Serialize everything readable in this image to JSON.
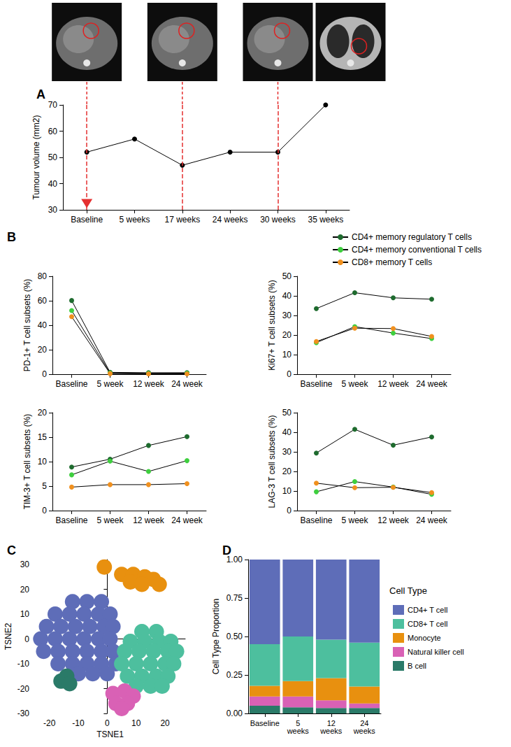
{
  "chart_data": [
    {
      "panel": "A",
      "type": "line",
      "ylabel": "Tumour volume (mm2)",
      "categories": [
        "Baseline",
        "5 weeks",
        "17 weeks",
        "24 weeks",
        "30 weeks",
        "35 weeks"
      ],
      "series": [
        {
          "name": "Tumour volume",
          "color": "#000000",
          "values": [
            52,
            57,
            47,
            52,
            52,
            70
          ]
        }
      ],
      "ylim": [
        30,
        70
      ],
      "yticks": [
        30,
        40,
        50,
        60,
        70
      ],
      "grid": false,
      "marker": "circle",
      "vlines": [
        "Baseline",
        "17 weeks",
        "30 weeks"
      ],
      "arrow_at": "Baseline"
    },
    {
      "panel": "B",
      "type": "line",
      "ylabel": "PD-1+ T cell subsets (%)",
      "categories": [
        "Baseline",
        "5 week",
        "12 week",
        "24 week"
      ],
      "series": [
        {
          "name": "CD4+ memory regulatory T cells",
          "color": "#1e6b2e",
          "values": [
            60.2,
            1.5,
            1.2,
            1.2
          ]
        },
        {
          "name": "CD4+ memory conventional T cells",
          "color": "#3ecf3e",
          "values": [
            52,
            1,
            0.7,
            0.8
          ]
        },
        {
          "name": "CD8+ memory T cells",
          "color": "#f0901e",
          "values": [
            47,
            0.5,
            0.3,
            0.3
          ]
        }
      ],
      "ylim": [
        0,
        80
      ],
      "yticks": [
        0,
        20,
        40,
        60,
        80
      ],
      "grid": false,
      "marker": "circle"
    },
    {
      "type": "line",
      "ylabel": "Ki67+ T cell subsets (%)",
      "categories": [
        "Baseline",
        "5 week",
        "12 week",
        "24 week"
      ],
      "series": [
        {
          "name": "CD4+ memory regulatory T cells",
          "color": "#1e6b2e",
          "values": [
            33.5,
            41.6,
            39,
            38.3
          ]
        },
        {
          "name": "CD4+ memory conventional T cells",
          "color": "#3ecf3e",
          "values": [
            16.1,
            24.3,
            21,
            18.2
          ]
        },
        {
          "name": "CD8+ memory T cells",
          "color": "#f0901e",
          "values": [
            16.7,
            23.5,
            23.3,
            19.3
          ]
        }
      ],
      "ylim": [
        0,
        50
      ],
      "yticks": [
        0,
        10,
        20,
        30,
        40,
        50
      ],
      "grid": false,
      "marker": "circle",
      "legend": "top-right"
    },
    {
      "type": "line",
      "ylabel": "TIM-3+ T cell subsets (%)",
      "categories": [
        "Baseline",
        "5 week",
        "12 week",
        "24 week"
      ],
      "series": [
        {
          "name": "CD4+ memory regulatory T cells",
          "color": "#1e6b2e",
          "values": [
            8.9,
            10.5,
            13.3,
            15.1
          ]
        },
        {
          "name": "CD4+ memory conventional T cells",
          "color": "#3ecf3e",
          "values": [
            7.3,
            10.1,
            8,
            10.2
          ]
        },
        {
          "name": "CD8+ memory T cells",
          "color": "#f0901e",
          "values": [
            4.8,
            5.3,
            5.3,
            5.5
          ]
        }
      ],
      "ylim": [
        0,
        20
      ],
      "yticks": [
        0,
        5,
        10,
        15,
        20
      ],
      "grid": false,
      "marker": "circle"
    },
    {
      "type": "line",
      "ylabel": "LAG-3 T cell subsets (%)",
      "categories": [
        "Baseline",
        "5 week",
        "12 week",
        "24 week"
      ],
      "series": [
        {
          "name": "CD4+ memory regulatory T cells",
          "color": "#1e6b2e",
          "values": [
            29.4,
            41.5,
            33.4,
            37.6
          ]
        },
        {
          "name": "CD4+ memory conventional T cells",
          "color": "#3ecf3e",
          "values": [
            9.6,
            14.8,
            12,
            8.3
          ]
        },
        {
          "name": "CD8+ memory T cells",
          "color": "#f0901e",
          "values": [
            14,
            11.7,
            11.9,
            9.2
          ]
        }
      ],
      "ylim": [
        0,
        50
      ],
      "yticks": [
        0,
        10,
        20,
        30,
        40,
        50
      ],
      "grid": false,
      "marker": "circle"
    },
    {
      "panel": "C",
      "type": "scatter",
      "xlabel": "TSNE1",
      "ylabel": "TSNE2",
      "xlim": [
        -25,
        27
      ],
      "ylim": [
        -30,
        32
      ],
      "xticks": [
        -20,
        -10,
        0,
        10,
        20
      ],
      "yticks": [
        -30,
        -20,
        -10,
        0,
        10,
        20,
        30
      ],
      "grid": false,
      "marker": "circle",
      "series": [
        {
          "name": "CD4+ T cell",
          "color": "#5e6db8",
          "x": [
            -12,
            -7,
            -2,
            -18,
            -13,
            -8,
            -3,
            1,
            -21,
            -16,
            -11,
            -6,
            -1,
            2,
            -23,
            -18,
            -13,
            -8,
            -3,
            1,
            -22,
            -17,
            -12,
            -7,
            -2,
            2,
            -17,
            -12,
            -7,
            -2,
            3,
            -10,
            -5,
            0
          ],
          "y": [
            15,
            15,
            15,
            10,
            10,
            10,
            10,
            10,
            5,
            5,
            5,
            5,
            5,
            5,
            0,
            0,
            0,
            0,
            0,
            0,
            -5,
            -5,
            -5,
            -5,
            -5,
            -5,
            -10,
            -10,
            -10,
            -10,
            -10,
            -14,
            -14,
            -14
          ]
        },
        {
          "name": "CD8+ T cell",
          "color": "#4dbf9e",
          "x": [
            12,
            17,
            8,
            13,
            18,
            22,
            6,
            11,
            16,
            21,
            24,
            5,
            10,
            15,
            20,
            23,
            7,
            12,
            17,
            21,
            10,
            15,
            19
          ],
          "y": [
            3,
            3,
            -1,
            -1,
            -1,
            -1,
            -5,
            -5,
            -5,
            -5,
            -5,
            -10,
            -10,
            -10,
            -10,
            -10,
            -15,
            -15,
            -15,
            -15,
            -19,
            -19,
            -19
          ]
        },
        {
          "name": "Monocyte",
          "color": "#e8900f",
          "x": [
            5,
            9,
            13,
            16,
            18,
            8,
            12,
            -1
          ],
          "y": [
            26,
            26,
            25,
            24,
            22,
            23,
            22,
            29
          ]
        },
        {
          "name": "Natural killer cell",
          "color": "#d961b5",
          "x": [
            2,
            6,
            9,
            3,
            7,
            5
          ],
          "y": [
            -22,
            -21,
            -23,
            -26,
            -26,
            -28
          ]
        },
        {
          "name": "B cell",
          "color": "#2a7a68",
          "x": [
            -16,
            -14,
            -13
          ],
          "y": [
            -17,
            -15,
            -18
          ]
        }
      ]
    },
    {
      "panel": "D",
      "type": "bar",
      "ylabel": "Cell Type Proportion",
      "stacked": true,
      "categories": [
        "Baseline",
        "5 weeks",
        "12 weeks",
        "24 weeks"
      ],
      "ylim": [
        0,
        1
      ],
      "yticks": [
        {
          "value": 0,
          "label": "0.00"
        },
        {
          "value": 0.25,
          "label": "0.25"
        },
        {
          "value": 0.5,
          "label": "0.50"
        },
        {
          "value": 0.75,
          "label": "0.75"
        },
        {
          "value": 1,
          "label": "1.00"
        }
      ],
      "grid": false,
      "legend": "right",
      "legend_title": "Cell Type",
      "series": [
        {
          "name": "CD4+ T cell",
          "color": "#5e6db8",
          "values": [
            0.55,
            0.5,
            0.52,
            0.54
          ]
        },
        {
          "name": "CD8+ T cell",
          "color": "#4dbf9e",
          "values": [
            0.27,
            0.29,
            0.25,
            0.285
          ]
        },
        {
          "name": "Monocyte",
          "color": "#e8900f",
          "values": [
            0.07,
            0.1,
            0.145,
            0.11
          ]
        },
        {
          "name": "Natural killer cell",
          "color": "#d961b5",
          "values": [
            0.06,
            0.07,
            0.05,
            0.03
          ]
        },
        {
          "name": "B cell",
          "color": "#2a7a68",
          "values": [
            0.05,
            0.04,
            0.035,
            0.035
          ]
        }
      ]
    }
  ]
}
